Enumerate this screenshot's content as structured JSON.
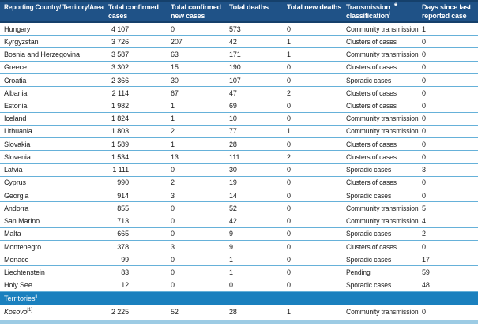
{
  "colors": {
    "header_bg": "#1F5287",
    "header_border": "#15406B",
    "header_text": "#FFFFFF",
    "section_bg": "#1A80BE",
    "row_divider": "#66B1D9",
    "bottom_band": "#9CCBE4"
  },
  "table": {
    "columns": [
      {
        "label": "Reporting Country/ Territory/Area"
      },
      {
        "label": "Total confirmed cases"
      },
      {
        "label": "Total confirmed new cases"
      },
      {
        "label": "Total deaths"
      },
      {
        "label": "Total new deaths"
      },
      {
        "line1": "Transmission",
        "line2": "classification",
        "superscript": "i",
        "asterisk": "*"
      },
      {
        "label": "Days since last reported case"
      }
    ],
    "rows": [
      {
        "country": "Hungary",
        "cases": "4 107",
        "new_cases": "0",
        "deaths": "573",
        "new_deaths": "0",
        "classification": "Community transmission",
        "days": "1"
      },
      {
        "country": "Kyrgyzstan",
        "cases": "3 726",
        "new_cases": "207",
        "deaths": "42",
        "new_deaths": "1",
        "classification": "Clusters of cases",
        "days": "0"
      },
      {
        "country": "Bosnia and Herzegovina",
        "cases": "3 587",
        "new_cases": "63",
        "deaths": "171",
        "new_deaths": "1",
        "classification": "Community transmission",
        "days": "0"
      },
      {
        "country": "Greece",
        "cases": "3 302",
        "new_cases": "15",
        "deaths": "190",
        "new_deaths": "0",
        "classification": "Clusters of cases",
        "days": "0"
      },
      {
        "country": "Croatia",
        "cases": "2 366",
        "new_cases": "30",
        "deaths": "107",
        "new_deaths": "0",
        "classification": "Sporadic cases",
        "days": "0"
      },
      {
        "country": "Albania",
        "cases": "2 114",
        "new_cases": "67",
        "deaths": "47",
        "new_deaths": "2",
        "classification": "Clusters of cases",
        "days": "0"
      },
      {
        "country": "Estonia",
        "cases": "1 982",
        "new_cases": "1",
        "deaths": "69",
        "new_deaths": "0",
        "classification": "Clusters of cases",
        "days": "0"
      },
      {
        "country": "Iceland",
        "cases": "1 824",
        "new_cases": "1",
        "deaths": "10",
        "new_deaths": "0",
        "classification": "Community transmission",
        "days": "0"
      },
      {
        "country": "Lithuania",
        "cases": "1 803",
        "new_cases": "2",
        "deaths": "77",
        "new_deaths": "1",
        "classification": "Community transmission",
        "days": "0"
      },
      {
        "country": "Slovakia",
        "cases": "1 589",
        "new_cases": "1",
        "deaths": "28",
        "new_deaths": "0",
        "classification": "Clusters of cases",
        "days": "0"
      },
      {
        "country": "Slovenia",
        "cases": "1 534",
        "new_cases": "13",
        "deaths": "111",
        "new_deaths": "2",
        "classification": "Clusters of cases",
        "days": "0"
      },
      {
        "country": "Latvia",
        "cases": "1 111",
        "new_cases": "0",
        "deaths": "30",
        "new_deaths": "0",
        "classification": "Sporadic cases",
        "days": "3"
      },
      {
        "country": "Cyprus",
        "cases": "990",
        "new_cases": "2",
        "deaths": "19",
        "new_deaths": "0",
        "classification": "Clusters of cases",
        "days": "0"
      },
      {
        "country": "Georgia",
        "cases": "914",
        "new_cases": "3",
        "deaths": "14",
        "new_deaths": "0",
        "classification": "Sporadic cases",
        "days": "0"
      },
      {
        "country": "Andorra",
        "cases": "855",
        "new_cases": "0",
        "deaths": "52",
        "new_deaths": "0",
        "classification": "Community transmission",
        "days": "5"
      },
      {
        "country": "San Marino",
        "cases": "713",
        "new_cases": "0",
        "deaths": "42",
        "new_deaths": "0",
        "classification": "Community transmission",
        "days": "4"
      },
      {
        "country": "Malta",
        "cases": "665",
        "new_cases": "0",
        "deaths": "9",
        "new_deaths": "0",
        "classification": "Sporadic cases",
        "days": "2"
      },
      {
        "country": "Montenegro",
        "cases": "378",
        "new_cases": "3",
        "deaths": "9",
        "new_deaths": "0",
        "classification": "Clusters of cases",
        "days": "0"
      },
      {
        "country": "Monaco",
        "cases": "99",
        "new_cases": "0",
        "deaths": "1",
        "new_deaths": "0",
        "classification": "Sporadic cases",
        "days": "17"
      },
      {
        "country": "Liechtenstein",
        "cases": "83",
        "new_cases": "0",
        "deaths": "1",
        "new_deaths": "0",
        "classification": "Pending",
        "days": "59"
      },
      {
        "country": "Holy See",
        "cases": "12",
        "new_cases": "0",
        "deaths": "0",
        "new_deaths": "0",
        "classification": "Sporadic cases",
        "days": "48"
      }
    ],
    "section": {
      "label": "Territories",
      "superscript": "ii"
    },
    "territory_rows": [
      {
        "country": "Kosovo",
        "sup": "[1]",
        "italic": true,
        "cases": "2 225",
        "new_cases": "52",
        "deaths": "28",
        "new_deaths": "1",
        "classification": "Community transmission",
        "days": "0"
      }
    ]
  }
}
